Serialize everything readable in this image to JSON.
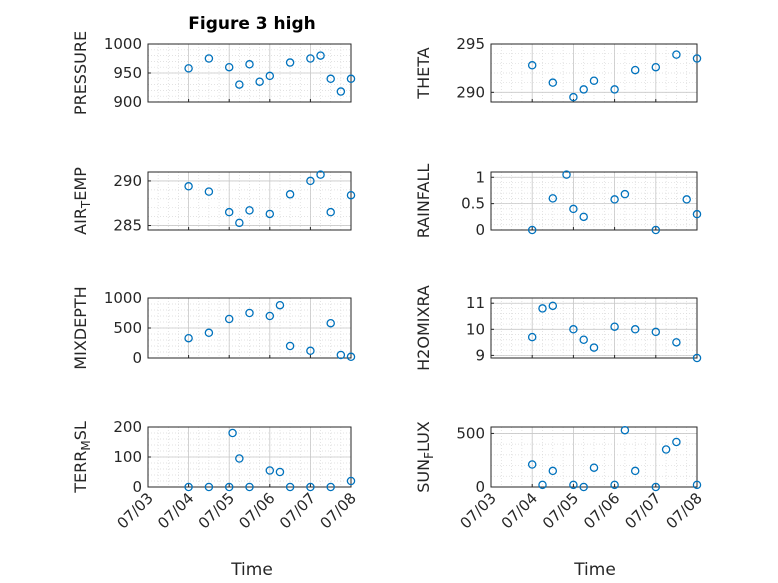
{
  "figure_title": "Figure 3 high",
  "xlabel": "Time",
  "x_tick_labels": [
    "07/03",
    "07/04",
    "07/05",
    "07/06",
    "07/07",
    "07/08"
  ],
  "colors": {
    "marker": "#0072BD",
    "grid": "#d9d9d9",
    "axis": "#262626"
  },
  "chart_data": [
    {
      "type": "scatter",
      "ylabel": "PRESSURE",
      "ylim": [
        900,
        1000
      ],
      "yticks": [
        "1000",
        "950",
        "900"
      ],
      "grid": true,
      "x": [
        "07/04 00:00",
        "07/04 12:00",
        "07/05 00:00",
        "07/05 06:00",
        "07/05 12:00",
        "07/05 18:00",
        "07/06 00:00",
        "07/06 12:00",
        "07/07 00:00",
        "07/07 06:00",
        "07/07 12:00",
        "07/07 18:00",
        "07/08 00:00"
      ],
      "y": [
        958,
        975,
        960,
        930,
        965,
        935,
        945,
        968,
        975,
        980,
        940,
        918,
        940
      ]
    },
    {
      "type": "scatter",
      "ylabel": "THETA",
      "ylim": [
        289,
        295
      ],
      "yticks": [
        "295",
        "290"
      ],
      "grid": true,
      "x": [
        "07/04 00:00",
        "07/04 12:00",
        "07/05 00:00",
        "07/05 06:00",
        "07/05 12:00",
        "07/06 00:00",
        "07/06 12:00",
        "07/07 00:00",
        "07/07 12:00",
        "07/08 00:00"
      ],
      "y": [
        292.8,
        291.0,
        289.5,
        290.3,
        291.2,
        290.3,
        292.3,
        292.6,
        293.9,
        293.5
      ]
    },
    {
      "type": "scatter",
      "ylabel": "AIR_TEMP",
      "ylim": [
        284.5,
        291
      ],
      "yticks": [
        "290",
        "285"
      ],
      "grid": true,
      "x": [
        "07/04 00:00",
        "07/04 12:00",
        "07/05 00:00",
        "07/05 06:00",
        "07/05 12:00",
        "07/06 00:00",
        "07/06 12:00",
        "07/07 00:00",
        "07/07 06:00",
        "07/07 12:00",
        "07/08 00:00"
      ],
      "y": [
        289.4,
        288.8,
        286.5,
        285.3,
        286.7,
        286.3,
        288.5,
        290.0,
        290.7,
        286.5,
        288.4
      ]
    },
    {
      "type": "scatter",
      "ylabel": "RAINFALL",
      "ylim": [
        0,
        1.1
      ],
      "yticks": [
        "1",
        "0.5",
        "0"
      ],
      "grid": true,
      "x": [
        "07/04 00:00",
        "07/04 12:00",
        "07/04 20:00",
        "07/05 00:00",
        "07/05 06:00",
        "07/06 00:00",
        "07/06 06:00",
        "07/07 00:00",
        "07/07 18:00",
        "07/08 00:00"
      ],
      "y": [
        0,
        0.6,
        1.05,
        0.4,
        0.25,
        0.58,
        0.68,
        0,
        0.58,
        0.3
      ]
    },
    {
      "type": "scatter",
      "ylabel": "MIXDEPTH",
      "ylim": [
        0,
        1000
      ],
      "yticks": [
        "1000",
        "500",
        "0"
      ],
      "grid": true,
      "x": [
        "07/04 00:00",
        "07/04 12:00",
        "07/05 00:00",
        "07/05 12:00",
        "07/06 00:00",
        "07/06 06:00",
        "07/06 12:00",
        "07/07 00:00",
        "07/07 12:00",
        "07/07 18:00",
        "07/08 00:00"
      ],
      "y": [
        330,
        420,
        650,
        750,
        700,
        880,
        200,
        120,
        580,
        50,
        20
      ]
    },
    {
      "type": "scatter",
      "ylabel": "H2OMIXRA",
      "ylim": [
        8.9,
        11.2
      ],
      "yticks": [
        "11",
        "10",
        "9"
      ],
      "grid": true,
      "x": [
        "07/04 00:00",
        "07/04 06:00",
        "07/04 12:00",
        "07/05 00:00",
        "07/05 06:00",
        "07/05 12:00",
        "07/06 00:00",
        "07/06 12:00",
        "07/07 00:00",
        "07/07 12:00",
        "07/08 00:00"
      ],
      "y": [
        9.7,
        10.8,
        10.9,
        10.0,
        9.6,
        9.3,
        10.1,
        10.0,
        9.9,
        9.5,
        8.9
      ]
    },
    {
      "type": "scatter",
      "ylabel": "TERR_MSL",
      "ylim": [
        0,
        200
      ],
      "yticks": [
        "200",
        "100",
        "0"
      ],
      "grid": true,
      "x": [
        "07/04 00:00",
        "07/04 12:00",
        "07/05 00:00",
        "07/05 02:00",
        "07/05 06:00",
        "07/05 12:00",
        "07/06 00:00",
        "07/06 06:00",
        "07/06 12:00",
        "07/07 00:00",
        "07/07 12:00",
        "07/08 00:00"
      ],
      "y": [
        0,
        0,
        0,
        180,
        95,
        0,
        55,
        50,
        0,
        0,
        0,
        20
      ]
    },
    {
      "type": "scatter",
      "ylabel": "SUN_FLUX",
      "ylim": [
        0,
        560
      ],
      "yticks": [
        "500",
        "0"
      ],
      "grid": true,
      "x": [
        "07/04 00:00",
        "07/04 06:00",
        "07/04 12:00",
        "07/05 00:00",
        "07/05 06:00",
        "07/05 12:00",
        "07/06 00:00",
        "07/06 06:00",
        "07/06 12:00",
        "07/07 00:00",
        "07/07 06:00",
        "07/07 12:00",
        "07/08 00:00"
      ],
      "y": [
        210,
        20,
        150,
        20,
        0,
        180,
        20,
        530,
        150,
        0,
        350,
        420,
        20
      ]
    }
  ]
}
